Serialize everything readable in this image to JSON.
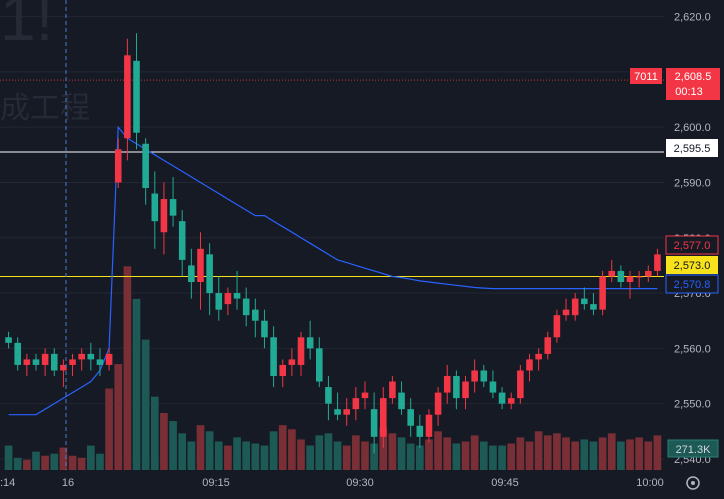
{
  "colors": {
    "background": "#161a25",
    "up": "#f23645",
    "down": "#22ab94",
    "volume_up": "#7a2e35",
    "volume_down": "#1e5a55",
    "ma_line": "#2962ff",
    "grid": "#232734",
    "axis_text": "#b2b5be"
  },
  "watermark": {
    "text": "1!",
    "subtext": "成工程"
  },
  "time_axis": {
    "labels": [
      "16",
      "09:15",
      "09:30",
      "09:45",
      "10:00"
    ],
    "left_edge_label": ":14"
  },
  "price_axis": {
    "ticks": [
      "2,620.0",
      "2,610.0",
      "2,600.0",
      "2,590.0",
      "2,580.0",
      "2,570.0",
      "2,560.0",
      "2,550.0",
      "2,540.0"
    ]
  },
  "price_tags": {
    "last": {
      "prefix": "7011",
      "price": "2,608.5",
      "countdown": "00:13"
    },
    "line_white": "2,595.5",
    "current": "2,577.0",
    "line_yellow": "2,573.0",
    "ma": "2,570.8",
    "volume": "271.3K"
  },
  "toolbar": {
    "settings_icon": "settings-icon"
  },
  "chart_data": {
    "type": "candlestick",
    "ylim": [
      2538,
      2623
    ],
    "candles": [
      [
        2562,
        2563,
        2560,
        2561
      ],
      [
        2561,
        2562,
        2556,
        2557
      ],
      [
        2557,
        2559,
        2555,
        2558
      ],
      [
        2558,
        2559,
        2556,
        2557
      ],
      [
        2557,
        2560,
        2555,
        2559
      ],
      [
        2559,
        2560,
        2555,
        2556
      ],
      [
        2556,
        2558,
        2553,
        2557
      ],
      [
        2557,
        2559,
        2555,
        2558
      ],
      [
        2558,
        2560,
        2556,
        2559
      ],
      [
        2559,
        2561,
        2556,
        2558
      ],
      [
        2558,
        2560,
        2555,
        2557
      ],
      [
        2557,
        2560,
        2556,
        2559
      ],
      [
        2590,
        2598,
        2589,
        2596
      ],
      [
        2598,
        2616,
        2594,
        2613
      ],
      [
        2612,
        2617,
        2596,
        2599
      ],
      [
        2597,
        2598,
        2586,
        2589
      ],
      [
        2588,
        2592,
        2578,
        2583
      ],
      [
        2581,
        2590,
        2577,
        2587
      ],
      [
        2587,
        2591,
        2582,
        2584
      ],
      [
        2583,
        2585,
        2573,
        2576
      ],
      [
        2575,
        2578,
        2569,
        2572
      ],
      [
        2572,
        2581,
        2567,
        2578
      ],
      [
        2577,
        2579,
        2566,
        2570
      ],
      [
        2570,
        2573,
        2565,
        2567
      ],
      [
        2568,
        2571,
        2566,
        2570
      ],
      [
        2570,
        2574,
        2567,
        2569
      ],
      [
        2569,
        2571,
        2564,
        2566
      ],
      [
        2567,
        2569,
        2562,
        2565
      ],
      [
        2565,
        2567,
        2560,
        2562
      ],
      [
        2562,
        2564,
        2553,
        2555
      ],
      [
        2555,
        2558,
        2553,
        2557
      ],
      [
        2557,
        2560,
        2555,
        2558
      ],
      [
        2557,
        2563,
        2555,
        2562
      ],
      [
        2562,
        2565,
        2558,
        2560
      ],
      [
        2560,
        2562,
        2553,
        2554
      ],
      [
        2553,
        2555,
        2547,
        2550
      ],
      [
        2549,
        2552,
        2547,
        2548
      ],
      [
        2548,
        2551,
        2546,
        2549
      ],
      [
        2549,
        2553,
        2547,
        2551
      ],
      [
        2551,
        2554,
        2549,
        2552
      ],
      [
        2549,
        2552,
        2541,
        2544
      ],
      [
        2544,
        2553,
        2542,
        2551
      ],
      [
        2551,
        2555,
        2550,
        2554
      ],
      [
        2552,
        2554,
        2548,
        2549
      ],
      [
        2549,
        2551,
        2544,
        2546
      ],
      [
        2546,
        2548,
        2542,
        2544
      ],
      [
        2544,
        2549,
        2543,
        2548
      ],
      [
        2548,
        2553,
        2546,
        2552
      ],
      [
        2552,
        2557,
        2550,
        2555
      ],
      [
        2555,
        2556,
        2549,
        2551
      ],
      [
        2551,
        2555,
        2549,
        2554
      ],
      [
        2554,
        2558,
        2552,
        2556
      ],
      [
        2556,
        2557,
        2553,
        2554
      ],
      [
        2554,
        2556,
        2551,
        2552
      ],
      [
        2552,
        2553,
        2549,
        2550
      ],
      [
        2550,
        2552,
        2549,
        2551
      ],
      [
        2551,
        2557,
        2550,
        2556
      ],
      [
        2556,
        2559,
        2554,
        2558
      ],
      [
        2558,
        2560,
        2556,
        2559
      ],
      [
        2559,
        2563,
        2558,
        2562
      ],
      [
        2562,
        2567,
        2561,
        2566
      ],
      [
        2566,
        2569,
        2565,
        2567
      ],
      [
        2566,
        2570,
        2565,
        2569
      ],
      [
        2569,
        2571,
        2567,
        2568
      ],
      [
        2568,
        2570,
        2566,
        2567
      ],
      [
        2567,
        2574,
        2566,
        2573
      ],
      [
        2573,
        2576,
        2572,
        2574
      ],
      [
        2574,
        2575,
        2571,
        2572
      ],
      [
        2572,
        2574,
        2569,
        2573
      ],
      [
        2573,
        2574,
        2571,
        2573
      ],
      [
        2573,
        2575,
        2572,
        2574
      ],
      [
        2574,
        2578,
        2573,
        2577
      ]
    ],
    "volume": [
      60,
      30,
      25,
      45,
      35,
      40,
      55,
      35,
      30,
      60,
      40,
      200,
      260,
      500,
      420,
      320,
      180,
      140,
      120,
      90,
      70,
      110,
      95,
      70,
      60,
      80,
      70,
      65,
      60,
      95,
      110,
      100,
      75,
      60,
      85,
      90,
      70,
      60,
      85,
      70,
      65,
      105,
      90,
      80,
      65,
      60,
      75,
      95,
      80,
      65,
      70,
      85,
      70,
      60,
      60,
      65,
      80,
      70,
      95,
      85,
      90,
      80,
      70,
      75,
      70,
      80,
      90,
      70,
      75,
      80,
      70,
      85
    ],
    "ma_line": [
      2548,
      2548,
      2548,
      2548,
      2549,
      2550,
      2551,
      2552,
      2553,
      2554,
      2556,
      2560,
      2600,
      2598,
      2597,
      2596,
      2595,
      2594,
      2593,
      2592,
      2591,
      2590,
      2589,
      2588,
      2587,
      2586,
      2585,
      2584,
      2584,
      2583,
      2582,
      2581,
      2580,
      2579,
      2578,
      2577,
      2576,
      2575.5,
      2575,
      2574.5,
      2574,
      2573.5,
      2573,
      2572.8,
      2572.5,
      2572.2,
      2572,
      2571.8,
      2571.6,
      2571.4,
      2571.2,
      2571,
      2570.9,
      2570.8,
      2570.8,
      2570.8,
      2570.8,
      2570.8,
      2570.8,
      2570.8,
      2570.8,
      2570.8,
      2570.8,
      2570.8,
      2570.8,
      2570.8,
      2570.8,
      2570.8,
      2570.8,
      2570.8,
      2570.8,
      2570.8
    ],
    "horizontal_lines": [
      {
        "price": 2595.5,
        "color": "#ffffff"
      },
      {
        "price": 2573.0,
        "color": "#f7e21b"
      },
      {
        "price": 2608.5,
        "color": "#f23645",
        "style": "dotted"
      }
    ]
  }
}
